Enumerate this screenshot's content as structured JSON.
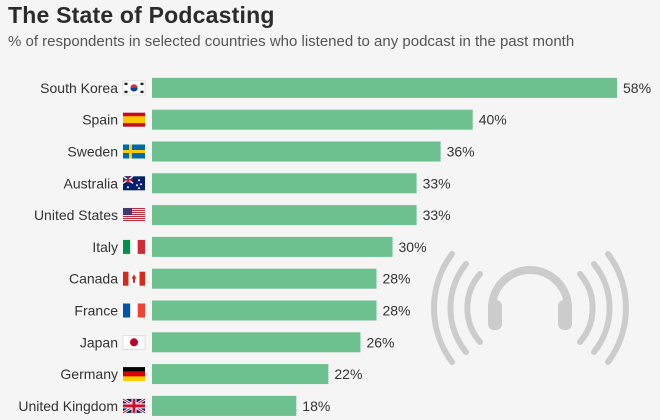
{
  "title": "The State of Podcasting",
  "subtitle": "% of respondents in selected countries who listened to any podcast in the past month",
  "colors": {
    "bar": "#6cc18e",
    "background": "#f5f5f5",
    "icon": "#cccccc"
  },
  "chart_data": {
    "type": "bar",
    "orientation": "horizontal",
    "title": "The State of Podcasting",
    "subtitle": "% of respondents in selected countries who listened to any podcast in the past month",
    "categories": [
      "South Korea",
      "Spain",
      "Sweden",
      "Australia",
      "United States",
      "Italy",
      "Canada",
      "France",
      "Japan",
      "Germany",
      "United Kingdom"
    ],
    "values": [
      58,
      40,
      36,
      33,
      33,
      30,
      28,
      28,
      26,
      22,
      18
    ],
    "value_labels": [
      "58%",
      "40%",
      "36%",
      "33%",
      "33%",
      "30%",
      "28%",
      "28%",
      "26%",
      "22%",
      "18%"
    ],
    "xlim": [
      0,
      58
    ],
    "grid": false,
    "legend": "none"
  },
  "flags": [
    "south-korea-flag-icon",
    "spain-flag-icon",
    "sweden-flag-icon",
    "australia-flag-icon",
    "usa-flag-icon",
    "italy-flag-icon",
    "canada-flag-icon",
    "france-flag-icon",
    "japan-flag-icon",
    "germany-flag-icon",
    "uk-flag-icon"
  ],
  "decoration_icon": "headphones-icon"
}
